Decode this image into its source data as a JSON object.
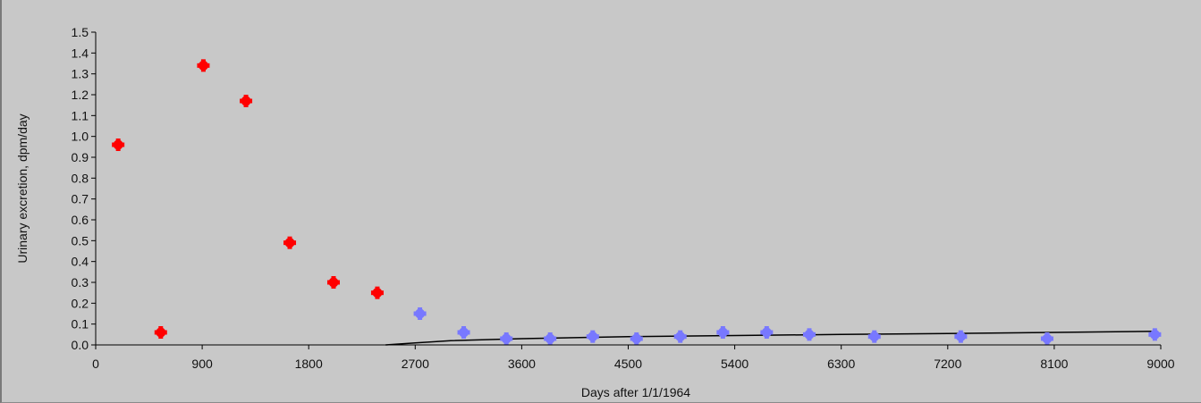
{
  "chart_data": {
    "type": "scatter",
    "title": "",
    "xlabel": "Days after 1/1/1964",
    "ylabel": "Urinary excretion, dpm/day",
    "xlim": [
      0,
      9000
    ],
    "ylim": [
      0,
      1.5
    ],
    "xticks": [
      0,
      900,
      1800,
      2700,
      3600,
      4500,
      5400,
      6300,
      7200,
      8100,
      9000
    ],
    "xtick_labels": [
      "0",
      "900",
      "1800",
      "2700",
      "3600",
      "4500",
      "5400",
      "6300",
      "7200",
      "8100",
      "9000"
    ],
    "yticks": [
      0,
      0.1,
      0.2,
      0.3,
      0.4,
      0.5,
      0.6,
      0.7,
      0.8,
      0.9,
      1.0,
      1.1,
      1.2,
      1.3,
      1.4,
      1.5
    ],
    "ytick_labels": [
      "0.0",
      "0.1",
      "0.2",
      "0.3",
      "0.4",
      "0.5",
      "0.6",
      "0.7",
      "0.8",
      "0.9",
      "1.0",
      "1.1",
      "1.2",
      "1.3",
      "1.4",
      "1.5"
    ],
    "grid": false,
    "background": "#c8c8c8",
    "series": [
      {
        "kind": "points",
        "color": "#ff0000",
        "points": [
          [
            190,
            0.96
          ],
          [
            550,
            0.06
          ],
          [
            910,
            1.34
          ],
          [
            1270,
            1.17
          ],
          [
            1640,
            0.49
          ],
          [
            2010,
            0.3
          ],
          [
            2380,
            0.25
          ]
        ]
      },
      {
        "kind": "points",
        "color": "#7878ff",
        "points": [
          [
            2740,
            0.15
          ],
          [
            3110,
            0.06
          ],
          [
            3470,
            0.03
          ],
          [
            3840,
            0.03
          ],
          [
            4200,
            0.04
          ],
          [
            4570,
            0.03
          ],
          [
            4940,
            0.04
          ],
          [
            5300,
            0.06
          ],
          [
            5670,
            0.06
          ],
          [
            6030,
            0.05
          ],
          [
            6580,
            0.04
          ],
          [
            7310,
            0.04
          ],
          [
            8040,
            0.03
          ],
          [
            8950,
            0.05
          ]
        ]
      },
      {
        "kind": "line",
        "color": "#000000",
        "points": [
          [
            2450,
            0.0
          ],
          [
            2700,
            0.01
          ],
          [
            3000,
            0.02
          ],
          [
            3600,
            0.03
          ],
          [
            4500,
            0.04
          ],
          [
            5400,
            0.045
          ],
          [
            6300,
            0.05
          ],
          [
            7200,
            0.055
          ],
          [
            8100,
            0.06
          ],
          [
            8950,
            0.065
          ]
        ]
      }
    ]
  }
}
